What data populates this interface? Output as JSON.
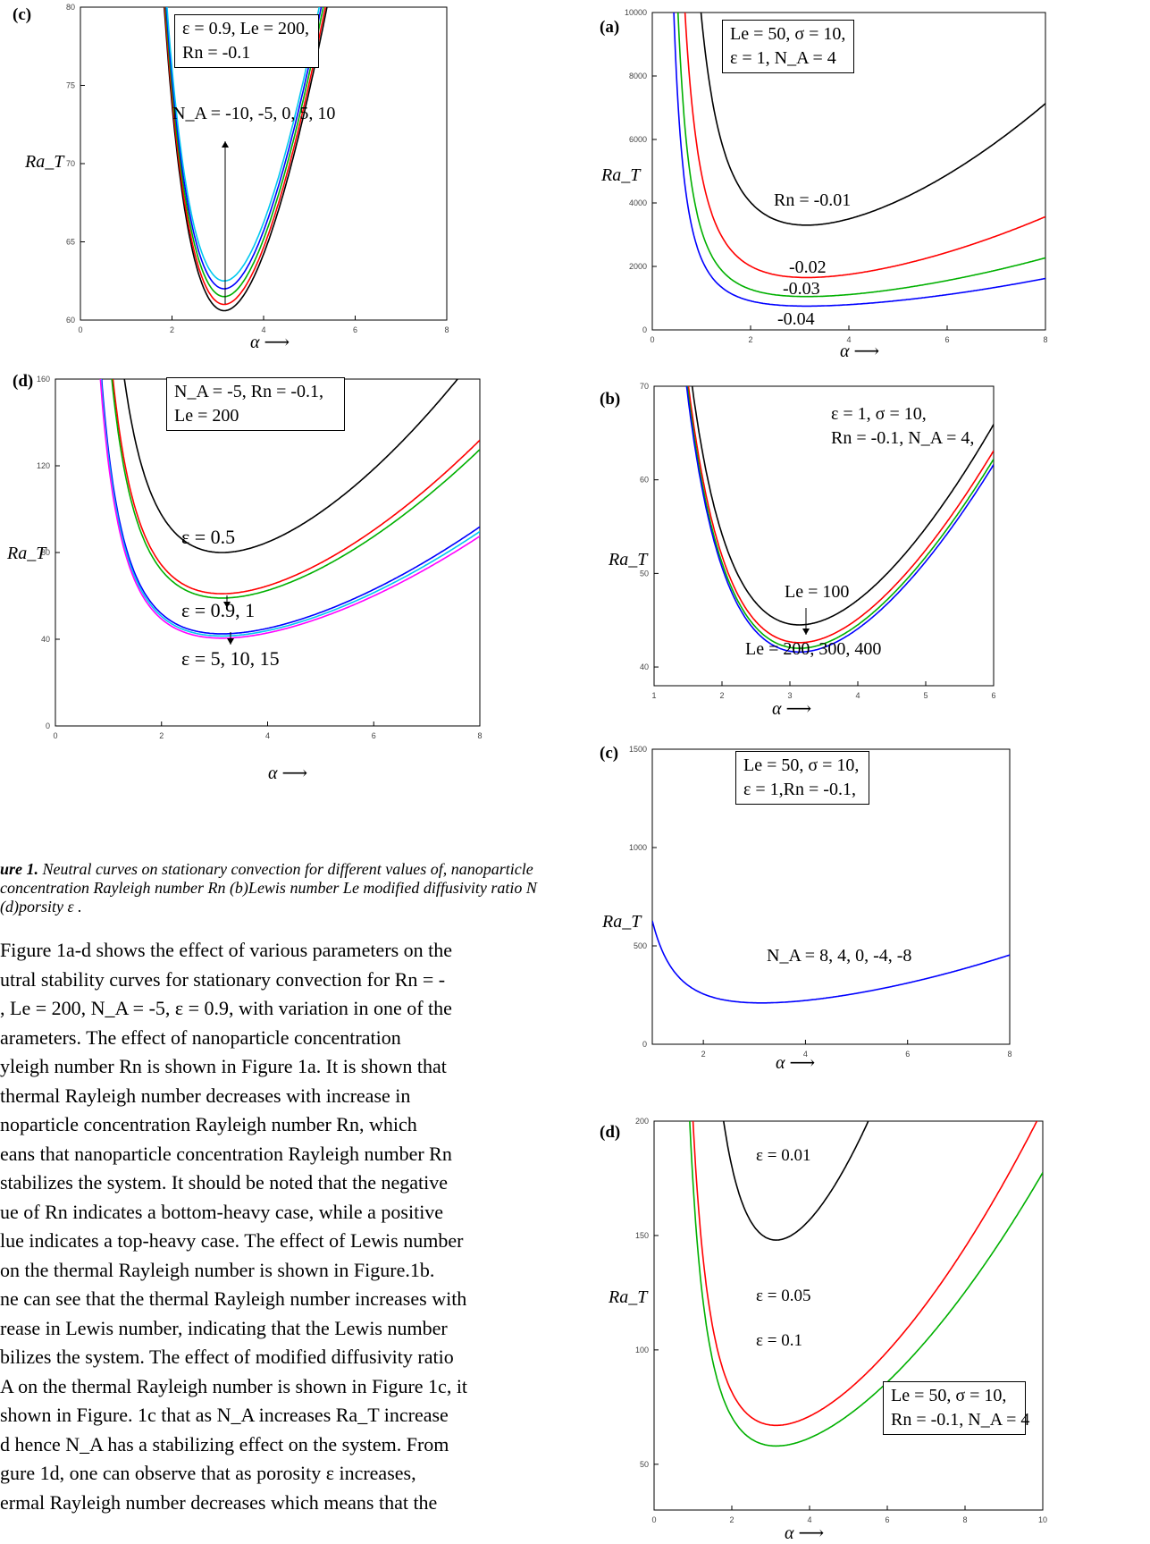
{
  "figures": [
    {
      "panel_label": "(c)",
      "legend": [
        "ε = 0.9, Le = 200,",
        "Rn = -0.1"
      ],
      "annotations": [
        "N_A = -10, -5, 0, 5, 10"
      ],
      "ylabel": "Ra_T",
      "xlabel": "α",
      "xticks": [
        "0",
        "2",
        "4",
        "6",
        "8"
      ],
      "yticks": [
        "60",
        "65",
        "70",
        "75",
        "80"
      ],
      "chart_data": {
        "type": "line",
        "xlim": [
          0,
          8
        ],
        "ylim": [
          60,
          80
        ],
        "series": [
          {
            "name": "-10",
            "color": "#000000",
            "min_y": 60.6,
            "min_x": 3.14
          },
          {
            "name": "-5",
            "color": "#ff0000",
            "min_y": 61.0,
            "min_x": 3.14
          },
          {
            "name": "0",
            "color": "#00b000",
            "min_y": 61.5,
            "min_x": 3.14
          },
          {
            "name": "5",
            "color": "#0000ff",
            "min_y": 62.0,
            "min_x": 3.14
          },
          {
            "name": "10",
            "color": "#00c8f0",
            "min_y": 62.5,
            "min_x": 3.14
          }
        ]
      }
    },
    {
      "panel_label": "(d)",
      "legend": [
        "N_A = -5, Rn = -0.1,",
        "Le = 200"
      ],
      "annotations": [
        "ε = 0.5",
        "ε = 0.9, 1",
        "ε = 5, 10, 15"
      ],
      "ylabel": "Ra_T",
      "xlabel": "α",
      "xticks": [
        "0",
        "2",
        "4",
        "6",
        "8"
      ],
      "yticks": [
        "0",
        "40",
        "80",
        "120",
        "160"
      ],
      "chart_data": {
        "type": "line",
        "xlim": [
          0,
          8
        ],
        "ylim": [
          0,
          160
        ],
        "series": [
          {
            "name": "0.5",
            "color": "#000000",
            "min_y": 80,
            "min_x": 3.14
          },
          {
            "name": "0.9",
            "color": "#ff0000",
            "min_y": 61,
            "min_x": 3.14
          },
          {
            "name": "1",
            "color": "#00b000",
            "min_y": 59,
            "min_x": 3.14
          },
          {
            "name": "5",
            "color": "#0000ff",
            "min_y": 42.5,
            "min_x": 3.14
          },
          {
            "name": "10",
            "color": "#00c8f0",
            "min_y": 41.5,
            "min_x": 3.14
          },
          {
            "name": "15",
            "color": "#ff00ff",
            "min_y": 40.5,
            "min_x": 3.14
          }
        ]
      }
    },
    {
      "panel_label": "(a)",
      "legend": [
        "Le = 50, σ = 10,",
        "ε = 1, N_A = 4"
      ],
      "annotations": [
        "Rn = -0.01",
        "-0.02",
        "-0.03",
        "-0.04"
      ],
      "ylabel": "Ra_T",
      "xlabel": "α",
      "xticks": [
        "0",
        "2",
        "4",
        "6",
        "8"
      ],
      "yticks": [
        "0",
        "2000",
        "4000",
        "6000",
        "8000",
        "10000"
      ],
      "chart_data": {
        "type": "line",
        "xlim": [
          0,
          8
        ],
        "ylim": [
          0,
          10000
        ],
        "series": [
          {
            "name": "-0.01",
            "color": "#000000",
            "min_y": 3300,
            "min_x": 3.14
          },
          {
            "name": "-0.02",
            "color": "#ff0000",
            "min_y": 1650,
            "min_x": 3.14
          },
          {
            "name": "-0.03",
            "color": "#00b000",
            "min_y": 1050,
            "min_x": 3.14
          },
          {
            "name": "-0.04",
            "color": "#0000ff",
            "min_y": 750,
            "min_x": 3.14
          }
        ]
      }
    },
    {
      "panel_label": "(b)",
      "legend": [
        "ε = 1, σ = 10,",
        "Rn = -0.1, N_A = 4,"
      ],
      "annotations": [
        "Le = 100",
        "Le = 200, 300, 400"
      ],
      "ylabel": "Ra_T",
      "xlabel": "α",
      "xticks": [
        "1",
        "2",
        "3",
        "4",
        "5",
        "6"
      ],
      "yticks": [
        "40",
        "50",
        "60",
        "70"
      ],
      "chart_data": {
        "type": "line",
        "xlim": [
          1,
          6
        ],
        "ylim": [
          38,
          70
        ],
        "series": [
          {
            "name": "100",
            "color": "#000000",
            "min_y": 44.5,
            "min_x": 3.14
          },
          {
            "name": "200",
            "color": "#ff0000",
            "min_y": 42.6,
            "min_x": 3.14
          },
          {
            "name": "300",
            "color": "#00b000",
            "min_y": 42.0,
            "min_x": 3.14
          },
          {
            "name": "400",
            "color": "#0000ff",
            "min_y": 41.6,
            "min_x": 3.14
          }
        ]
      }
    },
    {
      "panel_label": "(c)",
      "legend": [
        "Le = 50, σ = 10,",
        "ε = 1,Rn = -0.1,"
      ],
      "annotations": [
        "N_A = 8, 4, 0, -4, -8"
      ],
      "ylabel": "Ra_T",
      "xlabel": "α",
      "xticks": [
        "2",
        "4",
        "6",
        "8"
      ],
      "yticks": [
        "0",
        "500",
        "1000",
        "1500"
      ],
      "chart_data": {
        "type": "line",
        "xlim": [
          1,
          8
        ],
        "ylim": [
          0,
          1500
        ],
        "series": [
          {
            "name": "8, 4, 0, -4, -8",
            "color": "#0000ff",
            "min_y": 210,
            "min_x": 3.14
          }
        ]
      }
    },
    {
      "panel_label": "(d)",
      "legend": [
        "Le = 50, σ = 10,",
        "Rn = -0.1, N_A = 4"
      ],
      "annotations": [
        "ε = 0.01",
        "ε = 0.05",
        "ε = 0.1"
      ],
      "ylabel": "Ra_T",
      "xlabel": "α",
      "xticks": [
        "0",
        "2",
        "4",
        "6",
        "8",
        "10"
      ],
      "yticks": [
        "50",
        "100",
        "150",
        "200"
      ],
      "chart_data": {
        "type": "line",
        "xlim": [
          0,
          10
        ],
        "ylim": [
          30,
          200
        ],
        "series": [
          {
            "name": "0.01",
            "color": "#000000",
            "min_y": 148,
            "min_x": 3.14
          },
          {
            "name": "0.05",
            "color": "#ff0000",
            "min_y": 67,
            "min_x": 3.14
          },
          {
            "name": "0.1",
            "color": "#00b000",
            "min_y": 58,
            "min_x": 3.14
          }
        ]
      }
    }
  ],
  "caption": {
    "lead": "ure 1.",
    "text": " Neutral curves on stationary convection for different values of, nanoparticle concentration Rayleigh number Rn (b)Lewis number Le modified diffusivity ratio N",
    "tail": " (d)porsity ε ."
  },
  "paragraph": [
    "Figure 1a-d shows the effect of various parameters on the",
    "utral stability curves for stationary convection for Rn = -",
    ", Le = 200,  N_A = -5,  ε = 0.9, with variation in one of the",
    "arameters.   The   effect   of   nanoparticle   concentration",
    "yleigh number Rn is shown in Figure 1a. It is shown that",
    "  thermal  Rayleigh  number  decreases  with  increase  in",
    "noparticle   concentration   Rayleigh   number   Rn,   which",
    "eans that nanoparticle concentration Rayleigh number Rn",
    "stabilizes the system. It should be noted that the negative",
    "ue of Rn indicates a bottom-heavy case, while a positive",
    "lue indicates a top-heavy case. The effect of Lewis number",
    "  on the thermal Rayleigh number is shown in Figure.1b.",
    "ne can see that the thermal Rayleigh number increases with",
    "rease in Lewis number, indicating that the Lewis number",
    "bilizes the system. The effect of modified diffusivity ratio",
    "A  on the thermal Rayleigh number is shown in Figure 1c, it",
    "shown in Figure. 1c that as  N_A  increases  Ra_T  increase",
    "d hence  N_A  has a stabilizing effect on the system. From",
    "gure 1d, one can observe that as porosity  ε  increases,",
    "ermal Rayleigh number decreases which means that the"
  ]
}
